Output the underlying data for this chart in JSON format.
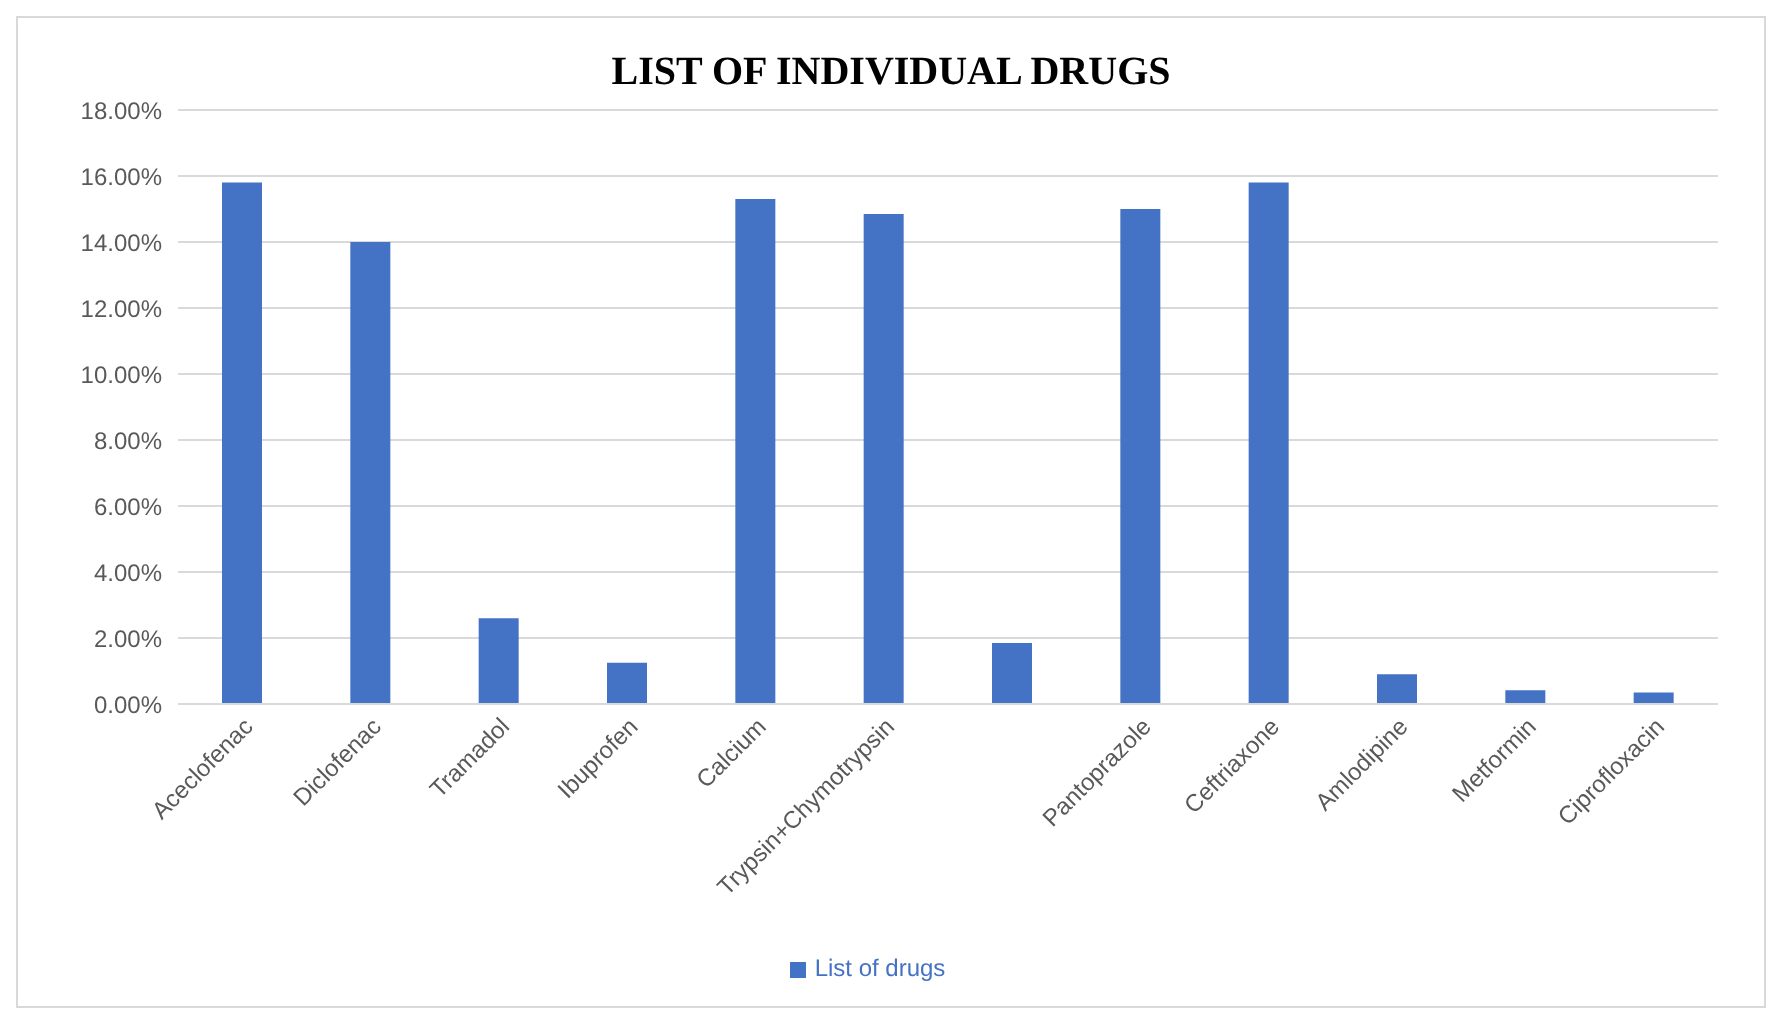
{
  "chart_data": {
    "type": "bar",
    "title": "LIST OF INDIVIDUAL DRUGS",
    "categories": [
      "Aceclofenac",
      "Diclofenac",
      "Tramadol",
      "Ibuprofen",
      "Calcium",
      "Trypsin+Chymotrypsin",
      null,
      "Pantoprazole",
      "Ceftriaxone",
      "Amlodipine",
      "Metformin",
      "Ciprofloxacin"
    ],
    "series": [
      {
        "name": "List of drugs",
        "color": "#4472c4",
        "values": [
          15.8,
          14.0,
          2.6,
          1.25,
          15.3,
          14.85,
          1.85,
          15.0,
          15.8,
          0.9,
          0.42,
          0.35
        ]
      }
    ],
    "ylim": [
      0,
      18
    ],
    "yticks": [
      {
        "value": 0,
        "label": "0.00%"
      },
      {
        "value": 2,
        "label": "2.00%"
      },
      {
        "value": 4,
        "label": "4.00%"
      },
      {
        "value": 6,
        "label": "6.00%"
      },
      {
        "value": 8,
        "label": "8.00%"
      },
      {
        "value": 10,
        "label": "10.00%"
      },
      {
        "value": 12,
        "label": "12.00%"
      },
      {
        "value": 14,
        "label": "14.00%"
      },
      {
        "value": 16,
        "label": "16.00%"
      },
      {
        "value": 18,
        "label": "18.00%"
      }
    ],
    "grid": "y",
    "legend": "bottom"
  }
}
